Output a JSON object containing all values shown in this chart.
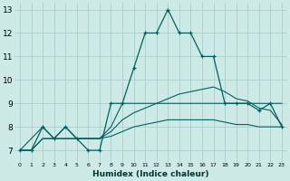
{
  "xlabel": "Humidex (Indice chaleur)",
  "bg_color": "#ceeae6",
  "grid_color": "#aacfcc",
  "line_color": "#006060",
  "xlim": [
    -0.5,
    23.5
  ],
  "ylim": [
    6.5,
    13.3
  ],
  "xticks": [
    0,
    1,
    2,
    3,
    4,
    5,
    6,
    7,
    8,
    9,
    10,
    11,
    12,
    13,
    14,
    15,
    16,
    17,
    18,
    19,
    20,
    21,
    22,
    23
  ],
  "yticks": [
    7,
    8,
    9,
    10,
    11,
    12,
    13
  ],
  "lines": [
    {
      "x": [
        0,
        1,
        2,
        3,
        4,
        5,
        6,
        7,
        8,
        9,
        10,
        11,
        12,
        13,
        14,
        15,
        16,
        17,
        18,
        19,
        20,
        21,
        22,
        23
      ],
      "y": [
        7,
        7,
        8,
        7.5,
        8,
        7.5,
        7,
        7,
        9,
        9,
        10.5,
        12,
        12,
        13,
        12,
        12,
        11,
        11,
        9,
        9,
        9,
        8.7,
        9,
        8
      ],
      "marker": true
    },
    {
      "x": [
        0,
        2,
        3,
        4,
        5,
        6,
        7,
        8,
        9,
        10,
        11,
        12,
        13,
        14,
        15,
        16,
        17,
        18,
        19,
        20,
        21,
        22,
        23
      ],
      "y": [
        7,
        8,
        7.5,
        8,
        7.5,
        7.5,
        7.5,
        8.0,
        9,
        9,
        9,
        9,
        9,
        9,
        9,
        9,
        9,
        9,
        9,
        9,
        9,
        9,
        9
      ],
      "marker": false
    },
    {
      "x": [
        0,
        1,
        2,
        3,
        4,
        5,
        6,
        7,
        8,
        9,
        10,
        11,
        12,
        13,
        14,
        15,
        16,
        17,
        18,
        19,
        20,
        21,
        22,
        23
      ],
      "y": [
        7,
        7,
        7.5,
        7.5,
        7.5,
        7.5,
        7.5,
        7.5,
        7.8,
        8.3,
        8.6,
        8.8,
        9.0,
        9.2,
        9.4,
        9.5,
        9.6,
        9.7,
        9.5,
        9.2,
        9.1,
        8.8,
        8.7,
        8.1
      ],
      "marker": false
    },
    {
      "x": [
        0,
        1,
        2,
        3,
        4,
        5,
        6,
        7,
        8,
        9,
        10,
        11,
        12,
        13,
        14,
        15,
        16,
        17,
        18,
        19,
        20,
        21,
        22,
        23
      ],
      "y": [
        7,
        7,
        7.5,
        7.5,
        7.5,
        7.5,
        7.5,
        7.5,
        7.6,
        7.8,
        8.0,
        8.1,
        8.2,
        8.3,
        8.3,
        8.3,
        8.3,
        8.3,
        8.2,
        8.1,
        8.1,
        8.0,
        8.0,
        8.0
      ],
      "marker": false
    }
  ]
}
